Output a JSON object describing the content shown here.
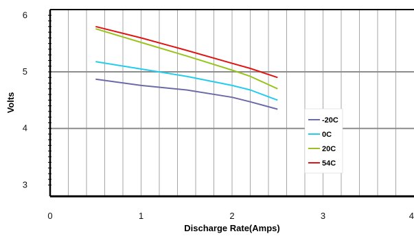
{
  "chart_data": {
    "type": "line",
    "xlabel": "Discharge Rate(Amps)",
    "ylabel": "Volts",
    "xlim": [
      0,
      4
    ],
    "ylim": [
      2.8,
      6.1
    ],
    "x_ticks": [
      "0",
      "1",
      "2",
      "3",
      "4"
    ],
    "y_ticks": [
      "3",
      "4",
      "5",
      "6"
    ],
    "x": [
      0.5,
      1.0,
      1.5,
      2.0,
      2.2,
      2.5
    ],
    "series": [
      {
        "name": "-20C",
        "color": "#6b6aa7",
        "values": [
          4.87,
          4.76,
          4.68,
          4.55,
          4.47,
          4.34
        ]
      },
      {
        "name": "0C",
        "color": "#22ccee",
        "values": [
          5.18,
          5.05,
          4.92,
          4.76,
          4.68,
          4.5
        ]
      },
      {
        "name": "20C",
        "color": "#99c31c",
        "values": [
          5.76,
          5.52,
          5.28,
          5.03,
          4.92,
          4.7
        ]
      },
      {
        "name": "54C",
        "color": "#e31212",
        "values": [
          5.8,
          5.6,
          5.38,
          5.15,
          5.06,
          4.9
        ]
      }
    ],
    "grid": true,
    "legend_position": "right"
  }
}
